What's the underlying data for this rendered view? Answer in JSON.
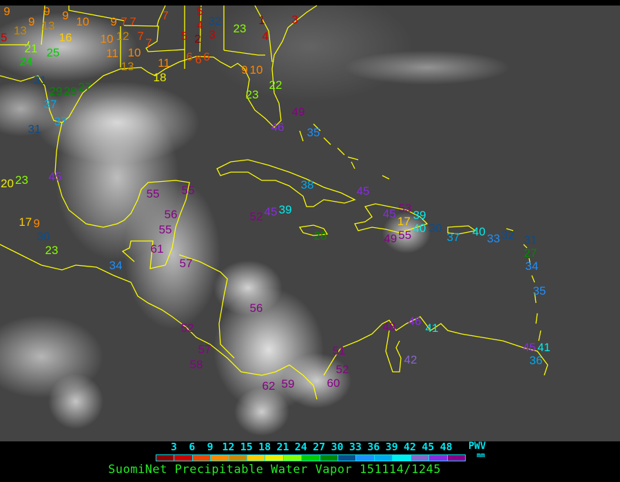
{
  "map": {
    "coastline_color": "#ffff00",
    "stations": [
      {
        "value": "9"
      },
      {
        "value": "9"
      },
      {
        "value": "9"
      },
      {
        "value": "10"
      },
      {
        "value": "9"
      },
      {
        "value": "7"
      },
      {
        "value": "7"
      },
      {
        "value": "9"
      },
      {
        "value": "13"
      },
      {
        "value": "13"
      },
      {
        "value": "5"
      },
      {
        "value": "16"
      },
      {
        "value": "10"
      },
      {
        "value": "12"
      },
      {
        "value": "7"
      },
      {
        "value": "7"
      },
      {
        "value": "21"
      },
      {
        "value": "25"
      },
      {
        "value": "24"
      },
      {
        "value": "11"
      },
      {
        "value": "10"
      },
      {
        "value": "11"
      },
      {
        "value": "13"
      },
      {
        "value": "18"
      },
      {
        "value": "31"
      },
      {
        "value": "29"
      },
      {
        "value": "27"
      },
      {
        "value": "28"
      },
      {
        "value": "37"
      },
      {
        "value": "37"
      },
      {
        "value": "31"
      },
      {
        "value": "5"
      },
      {
        "value": "4"
      },
      {
        "value": "32"
      },
      {
        "value": "2"
      },
      {
        "value": "3"
      },
      {
        "value": "23"
      },
      {
        "value": "1"
      },
      {
        "value": "4"
      },
      {
        "value": "3"
      },
      {
        "value": "6"
      },
      {
        "value": "6"
      },
      {
        "value": "6"
      },
      {
        "value": "9"
      },
      {
        "value": "10"
      },
      {
        "value": "23"
      },
      {
        "value": "22"
      },
      {
        "value": "49"
      },
      {
        "value": "46"
      },
      {
        "value": "35"
      },
      {
        "value": "7"
      },
      {
        "value": "5"
      },
      {
        "value": "20"
      },
      {
        "value": "23"
      },
      {
        "value": "45"
      },
      {
        "value": "55"
      },
      {
        "value": "55"
      },
      {
        "value": "56"
      },
      {
        "value": "55"
      },
      {
        "value": "61"
      },
      {
        "value": "57"
      },
      {
        "value": "17"
      },
      {
        "value": "9"
      },
      {
        "value": "30"
      },
      {
        "value": "23"
      },
      {
        "value": "34"
      },
      {
        "value": "38"
      },
      {
        "value": "45"
      },
      {
        "value": "52"
      },
      {
        "value": "45"
      },
      {
        "value": "39"
      },
      {
        "value": "28"
      },
      {
        "value": "45"
      },
      {
        "value": "53"
      },
      {
        "value": "39"
      },
      {
        "value": "17"
      },
      {
        "value": "49"
      },
      {
        "value": "55"
      },
      {
        "value": "40"
      },
      {
        "value": "30"
      },
      {
        "value": "37"
      },
      {
        "value": "40"
      },
      {
        "value": "33"
      },
      {
        "value": "32"
      },
      {
        "value": "31"
      },
      {
        "value": "27"
      },
      {
        "value": "34"
      },
      {
        "value": "35"
      },
      {
        "value": "56"
      },
      {
        "value": "52"
      },
      {
        "value": "57"
      },
      {
        "value": "58"
      },
      {
        "value": "62"
      },
      {
        "value": "59"
      },
      {
        "value": "60"
      },
      {
        "value": "52"
      },
      {
        "value": "51"
      },
      {
        "value": "48"
      },
      {
        "value": "46"
      },
      {
        "value": "41"
      },
      {
        "value": "42"
      },
      {
        "value": "45"
      },
      {
        "value": "41"
      },
      {
        "value": "36"
      }
    ]
  },
  "legend": {
    "ticks": [
      "3",
      "6",
      "9",
      "12",
      "15",
      "18",
      "21",
      "24",
      "27",
      "30",
      "33",
      "36",
      "39",
      "42",
      "45",
      "48"
    ],
    "colors": [
      "#8b0000",
      "#cc0000",
      "#ee4400",
      "#ff8800",
      "#cc8800",
      "#ffcc00",
      "#eeee00",
      "#88ff00",
      "#00cc00",
      "#008800",
      "#0a4c8c",
      "#1e90ff",
      "#00aaee",
      "#00eeee",
      "#8866cc",
      "#8a2be2",
      "#880088"
    ],
    "quantity": "PWV",
    "unit": "mm"
  },
  "caption": "SuomiNet Precipitable Water Vapor 151114/1245"
}
